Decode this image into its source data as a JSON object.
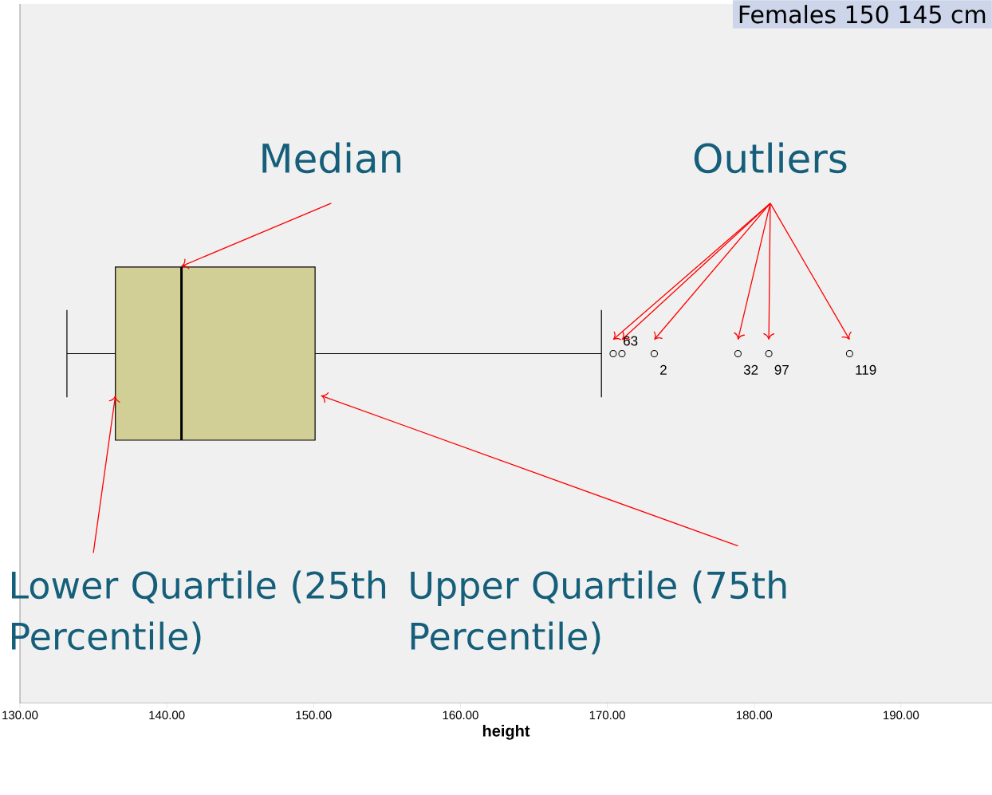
{
  "chart_data": {
    "type": "box",
    "xlabel": "height",
    "categories": [
      null
    ],
    "orientation": "horizontal",
    "color": "#d2cf96",
    "boxes": [
      {
        "low": 133.2,
        "q1": 136.5,
        "median": 141.0,
        "q3": 150.1,
        "high": 169.6,
        "outliers": [
          170.4,
          171.0,
          173.2,
          178.9,
          181.0,
          186.5
        ]
      }
    ],
    "xlim": [
      130,
      196.2
    ],
    "xticks": [
      {
        "value": 130,
        "label": "130.00"
      },
      {
        "value": 140,
        "label": "140.00"
      },
      {
        "value": 150,
        "label": "150.00"
      },
      {
        "value": 160,
        "label": "160.00"
      },
      {
        "value": 170,
        "label": "170.00"
      },
      {
        "value": 180,
        "label": "180.00"
      },
      {
        "value": 190,
        "label": "190.00"
      }
    ],
    "tick_labels": "x",
    "annotations": [
      "Median",
      "Outliers",
      "Lower Quartile (25th Percentile)",
      "Upper Quartile (75th Percentile)",
      "63",
      "2",
      "32",
      "97",
      "119",
      "Females 150 145 cm"
    ]
  }
}
